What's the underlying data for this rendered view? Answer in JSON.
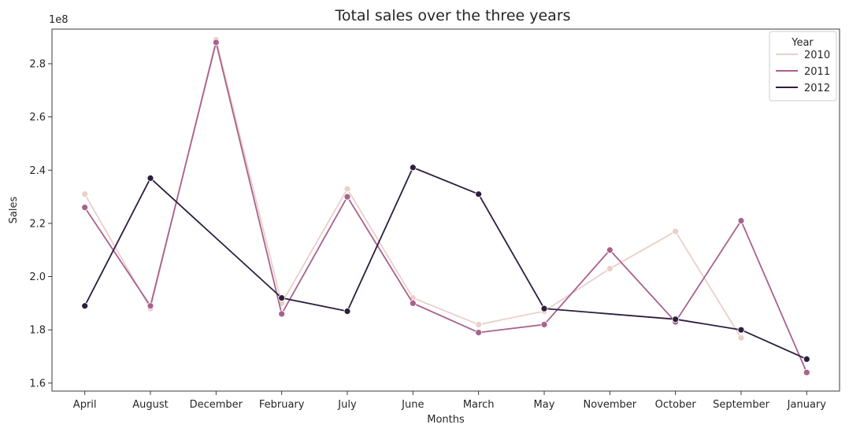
{
  "chart_data": {
    "type": "line",
    "title": "Total sales over the three years",
    "xlabel": "Months",
    "ylabel": "Sales",
    "y_offset_label": "1e8",
    "categories": [
      "April",
      "August",
      "December",
      "February",
      "July",
      "June",
      "March",
      "May",
      "November",
      "October",
      "September",
      "January"
    ],
    "ylim": [
      1.57,
      2.93
    ],
    "yticks": [
      1.6,
      1.8,
      2.0,
      2.2,
      2.4,
      2.6,
      2.8
    ],
    "ytick_labels": [
      "1.6",
      "1.8",
      "2.0",
      "2.2",
      "2.4",
      "2.6",
      "2.8"
    ],
    "legend": {
      "title": "Year",
      "position": "top-right"
    },
    "grid": false,
    "series": [
      {
        "name": "2010",
        "color": "#ebcfc9",
        "values": [
          2.31,
          1.88,
          2.89,
          1.9,
          2.33,
          1.92,
          1.82,
          1.87,
          2.03,
          2.17,
          1.77,
          null
        ]
      },
      {
        "name": "2011",
        "color": "#a8628c",
        "values": [
          2.26,
          1.89,
          2.88,
          1.86,
          2.3,
          1.9,
          1.79,
          1.82,
          2.1,
          1.83,
          2.21,
          1.64
        ]
      },
      {
        "name": "2012",
        "color": "#2d1e3e",
        "values": [
          1.89,
          2.37,
          null,
          1.92,
          1.87,
          2.41,
          2.31,
          1.88,
          null,
          1.84,
          1.8,
          1.69
        ]
      }
    ]
  }
}
